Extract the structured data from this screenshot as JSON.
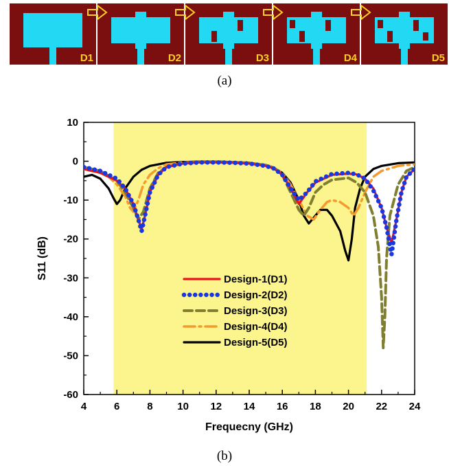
{
  "panel_a": {
    "caption": "(a)",
    "background_color": "#7b0e0e",
    "patch_color": "#22d8f2",
    "label_color": "#ffd21c",
    "arrow_icon": "right-arrow-icon",
    "designs": [
      {
        "label": "D1"
      },
      {
        "label": "D2"
      },
      {
        "label": "D3"
      },
      {
        "label": "D4"
      },
      {
        "label": "D5"
      }
    ]
  },
  "panel_b": {
    "caption": "(b)"
  },
  "chart_data": {
    "type": "line",
    "xlabel": "Frequecny (GHz)",
    "ylabel": "S11 (dB)",
    "xlim": [
      4,
      24
    ],
    "ylim": [
      -60,
      10
    ],
    "xticks": [
      4,
      6,
      8,
      10,
      12,
      14,
      16,
      18,
      20,
      22,
      24
    ],
    "yticks": [
      10,
      0,
      -10,
      -20,
      -30,
      -40,
      -50,
      -60
    ],
    "grid": false,
    "legend_position": "center-bottom",
    "highlight_band": {
      "x_start": 5.8,
      "x_end": 21.1,
      "color": "#fcf58e"
    },
    "series": [
      {
        "name": "Design-1(D1)",
        "color": "#e8141a",
        "style": "solid",
        "x": [
          4,
          5,
          6,
          6.5,
          7,
          7.3,
          7.5,
          7.7,
          8,
          8.5,
          9,
          10,
          11,
          12,
          13,
          14,
          15,
          15.5,
          16,
          16.5,
          17,
          17.5,
          18,
          19,
          20,
          20.5,
          21,
          21.5,
          22,
          22.3,
          22.6,
          22.9,
          23.2,
          23.5,
          24
        ],
        "y": [
          -2,
          -3,
          -5,
          -7,
          -11,
          -15,
          -17.5,
          -14,
          -8,
          -3.5,
          -1.5,
          -0.6,
          -0.3,
          -0.3,
          -0.4,
          -0.6,
          -1.2,
          -1.9,
          -3.5,
          -7,
          -11,
          -8,
          -5.5,
          -3.5,
          -3.2,
          -3.4,
          -4.5,
          -7,
          -12,
          -17,
          -21,
          -15,
          -8,
          -4,
          -2
        ]
      },
      {
        "name": "Design-2(D2)",
        "color": "#1a38e0",
        "style": "dotted",
        "x": [
          4,
          5,
          6,
          6.5,
          7,
          7.3,
          7.5,
          7.7,
          8,
          8.5,
          9,
          10,
          11,
          12,
          13,
          14,
          15,
          15.5,
          16,
          16.5,
          17,
          17.5,
          18,
          19,
          20,
          20.5,
          21,
          21.5,
          22,
          22.3,
          22.6,
          22.9,
          23.2,
          23.5,
          24
        ],
        "y": [
          -1.5,
          -2.5,
          -4.5,
          -7,
          -11,
          -15,
          -18,
          -14,
          -8,
          -3.5,
          -1.5,
          -0.6,
          -0.3,
          -0.3,
          -0.4,
          -0.6,
          -1.2,
          -1.9,
          -3.5,
          -7,
          -10,
          -8,
          -5.2,
          -3.3,
          -3,
          -3.4,
          -4.5,
          -7.5,
          -12,
          -17,
          -24,
          -15,
          -8,
          -4,
          -2
        ]
      },
      {
        "name": "Design-3(D3)",
        "color": "#7f7f2f",
        "style": "dashed",
        "x": [
          4,
          5,
          6,
          6.5,
          7,
          7.3,
          7.6,
          8,
          8.5,
          9,
          10,
          11,
          12,
          13,
          14,
          15,
          15.5,
          16,
          16.5,
          17,
          17.3,
          17.6,
          18,
          18.5,
          19,
          20,
          20.5,
          21,
          21.5,
          21.8,
          22,
          22.1,
          22.2,
          22.3,
          22.5,
          23,
          23.5,
          24
        ],
        "y": [
          -1.5,
          -2.5,
          -5,
          -8,
          -12,
          -15,
          -13,
          -7,
          -3,
          -1.5,
          -0.5,
          -0.2,
          -0.2,
          -0.3,
          -0.5,
          -1,
          -1.7,
          -3.5,
          -8,
          -12.5,
          -14,
          -12,
          -8,
          -6,
          -4.8,
          -4.3,
          -5.5,
          -8,
          -14,
          -22,
          -35,
          -48,
          -40,
          -25,
          -14,
          -6,
          -2.5,
          -1.5
        ]
      },
      {
        "name": "Design-4(D4)",
        "color": "#f59a2d",
        "style": "dashdot",
        "x": [
          4,
          5,
          5.5,
          6,
          6.5,
          6.8,
          7,
          7.3,
          7.6,
          8,
          8.5,
          9,
          10,
          11,
          12,
          13,
          14,
          15,
          15.5,
          16,
          16.5,
          17,
          17.5,
          17.9,
          18.3,
          18.7,
          19,
          19.5,
          20,
          20.3,
          20.6,
          21,
          21.5,
          22,
          23,
          24
        ],
        "y": [
          -2,
          -3,
          -4,
          -6,
          -9,
          -12,
          -13,
          -10,
          -6,
          -3.5,
          -1.8,
          -0.8,
          -0.3,
          -0.2,
          -0.2,
          -0.3,
          -0.5,
          -1,
          -1.7,
          -3,
          -6,
          -10,
          -14,
          -15,
          -12.5,
          -10.5,
          -10,
          -10.5,
          -12,
          -14,
          -12,
          -8,
          -4,
          -2.5,
          -1.2,
          -0.8
        ]
      },
      {
        "name": "Design-5(D5)",
        "color": "#000000",
        "style": "solid",
        "x": [
          4,
          4.5,
          5,
          5.5,
          5.8,
          6,
          6.2,
          6.5,
          7,
          7.5,
          8,
          9,
          10,
          11,
          12,
          13,
          14,
          15,
          15.5,
          16,
          16.5,
          17,
          17.3,
          17.6,
          18,
          18.3,
          18.7,
          19,
          19.5,
          19.8,
          20,
          20.2,
          20.4,
          20.7,
          21,
          21.5,
          22,
          23,
          24
        ],
        "y": [
          -4,
          -3.5,
          -4.5,
          -7,
          -9.5,
          -11,
          -10,
          -7,
          -4,
          -2.2,
          -1.2,
          -0.4,
          -0.2,
          -0.1,
          -0.1,
          -0.2,
          -0.4,
          -1,
          -1.7,
          -3,
          -5.5,
          -10,
          -14,
          -16,
          -14,
          -12.5,
          -12.5,
          -14,
          -18,
          -23,
          -25.5,
          -20,
          -12,
          -7,
          -4,
          -2,
          -1.2,
          -0.5,
          -0.3
        ]
      }
    ]
  }
}
